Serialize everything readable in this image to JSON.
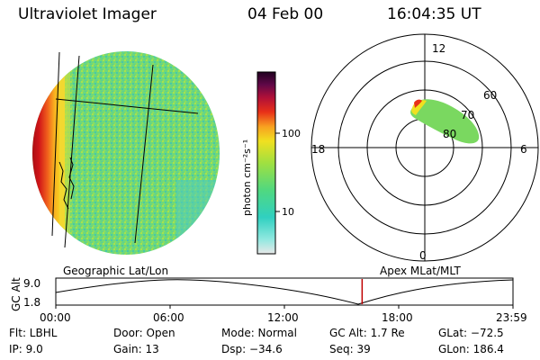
{
  "header": {
    "title": "Ultraviolet Imager",
    "date": "04 Feb 00",
    "time": "16:04:35 UT"
  },
  "colorbar": {
    "label": "photon cm⁻²s⁻¹",
    "tick_100": "100",
    "tick_10": "10"
  },
  "polar": {
    "mlt_top": "12",
    "mlt_left": "18",
    "mlt_right": "6",
    "mlt_bottom": "0",
    "lat_60": "60",
    "lat_70": "70",
    "lat_80": "80"
  },
  "panel_labels": {
    "geo": "Geographic Lat/Lon",
    "apex": "Apex MLat/MLT"
  },
  "altitude_plot": {
    "ylabel": "GC Alt",
    "y_max": "9.0",
    "y_min": "1.8",
    "x_ticks": [
      "00:00",
      "06:00",
      "12:00",
      "18:00",
      "23:59"
    ],
    "marker_time_hours": 16.08
  },
  "info": {
    "flt": "Flt: LBHL",
    "ip": "IP:  9.0",
    "door": "Door: Open",
    "gain": "Gain: 13",
    "mode": "Mode: Normal",
    "dsp": "Dsp:  −34.6",
    "gcalt": "GC Alt: 1.7 Re",
    "seq": "Seq: 39",
    "glat": "GLat: −72.5",
    "glon": "GLon: 186.4"
  }
}
